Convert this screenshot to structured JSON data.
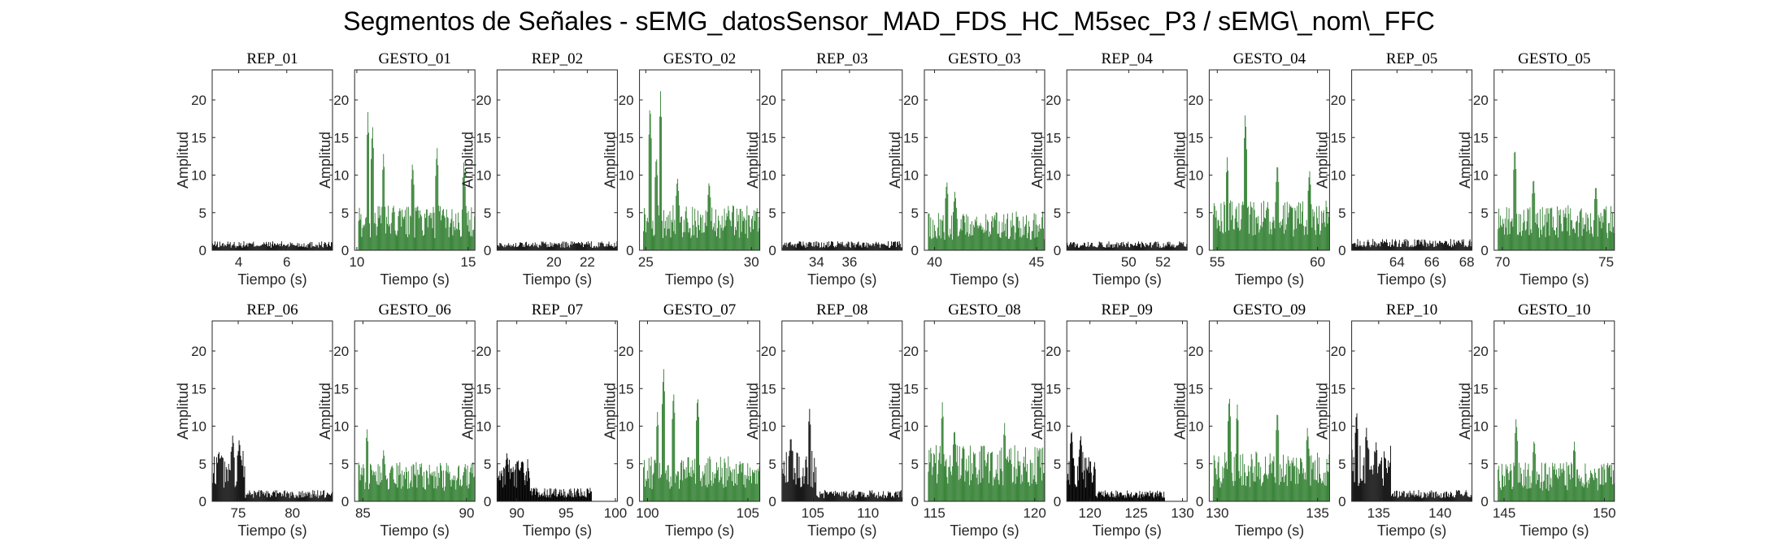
{
  "figure": {
    "title": "Segmentos de Señales - sEMG_datosSensor_MAD_FDS_HC_M5sec_P3 / sEMG\\_nom\\_FFC",
    "colors": {
      "rep": "#000000",
      "gesto": "#2e7d2e",
      "axes": "#262626"
    }
  },
  "chart_data": [
    {
      "type": "bar",
      "title": "REP_01",
      "xlabel": "Tiempo (s)",
      "ylabel": "Amplitud",
      "xlim": [
        2.9,
        7.9
      ],
      "ylim": [
        0,
        24
      ],
      "xticks": [
        4,
        6
      ],
      "yticks": [
        0,
        5,
        10,
        15,
        20
      ],
      "color": "#000000",
      "level": 0.8,
      "peak": 1.5,
      "bursts": []
    },
    {
      "type": "bar",
      "title": "GESTO_01",
      "xlabel": "Tiempo (s)",
      "ylabel": "Amplitud",
      "xlim": [
        9.9,
        15.3
      ],
      "ylim": [
        0,
        24
      ],
      "xticks": [
        10,
        15
      ],
      "yticks": [
        0,
        5,
        10,
        15,
        20
      ],
      "color": "#2e7d2e",
      "level": 4.0,
      "peak": 18.5,
      "bursts": [
        {
          "x": 10.5,
          "h": 18.5
        },
        {
          "x": 10.7,
          "h": 17
        },
        {
          "x": 11.2,
          "h": 13
        },
        {
          "x": 12.5,
          "h": 12
        },
        {
          "x": 13.6,
          "h": 14
        },
        {
          "x": 14.8,
          "h": 12
        }
      ]
    },
    {
      "type": "bar",
      "title": "REP_02",
      "xlabel": "Tiempo (s)",
      "ylabel": "Amplitud",
      "xlim": [
        16.6,
        23.8
      ],
      "ylim": [
        0,
        24
      ],
      "xticks": [
        20,
        22
      ],
      "yticks": [
        0,
        5,
        10,
        15,
        20
      ],
      "color": "#000000",
      "level": 0.8,
      "peak": 1.5,
      "bursts": []
    },
    {
      "type": "bar",
      "title": "GESTO_02",
      "xlabel": "Tiempo (s)",
      "ylabel": "Amplitud",
      "xlim": [
        24.7,
        30.4
      ],
      "ylim": [
        0,
        24
      ],
      "xticks": [
        25,
        30
      ],
      "yticks": [
        0,
        5,
        10,
        15,
        20
      ],
      "color": "#2e7d2e",
      "level": 4.0,
      "peak": 21.2,
      "bursts": [
        {
          "x": 25.2,
          "h": 20
        },
        {
          "x": 25.7,
          "h": 21.2
        },
        {
          "x": 25.5,
          "h": 13
        },
        {
          "x": 26.5,
          "h": 10
        },
        {
          "x": 28,
          "h": 9.5
        }
      ]
    },
    {
      "type": "bar",
      "title": "REP_03",
      "xlabel": "Tiempo (s)",
      "ylabel": "Amplitud",
      "xlim": [
        31.9,
        39.2
      ],
      "ylim": [
        0,
        24
      ],
      "xticks": [
        34,
        36
      ],
      "yticks": [
        0,
        5,
        10,
        15,
        20
      ],
      "color": "#000000",
      "level": 0.8,
      "peak": 1.6,
      "bursts": []
    },
    {
      "type": "bar",
      "title": "GESTO_03",
      "xlabel": "Tiempo (s)",
      "ylabel": "Amplitud",
      "xlim": [
        39.5,
        45.4
      ],
      "ylim": [
        0,
        24
      ],
      "xticks": [
        40,
        45
      ],
      "yticks": [
        0,
        5,
        10,
        15,
        20
      ],
      "color": "#2e7d2e",
      "level": 3.5,
      "peak": 9.5,
      "bursts": [
        {
          "x": 40.6,
          "h": 9.5
        },
        {
          "x": 41,
          "h": 8
        }
      ]
    },
    {
      "type": "bar",
      "title": "REP_04",
      "xlabel": "Tiempo (s)",
      "ylabel": "Amplitud",
      "xlim": [
        46.4,
        53.4
      ],
      "ylim": [
        0,
        24
      ],
      "xticks": [
        50,
        52
      ],
      "yticks": [
        0,
        5,
        10,
        15,
        20
      ],
      "color": "#000000",
      "level": 0.8,
      "peak": 1.6,
      "bursts": []
    },
    {
      "type": "bar",
      "title": "GESTO_04",
      "xlabel": "Tiempo (s)",
      "ylabel": "Amplitud",
      "xlim": [
        54.6,
        60.6
      ],
      "ylim": [
        0,
        24
      ],
      "xticks": [
        55,
        60
      ],
      "yticks": [
        0,
        5,
        10,
        15,
        20
      ],
      "color": "#2e7d2e",
      "level": 4.5,
      "peak": 18.7,
      "bursts": [
        {
          "x": 56.4,
          "h": 18.7
        },
        {
          "x": 55.5,
          "h": 12.5
        },
        {
          "x": 58,
          "h": 12
        },
        {
          "x": 59.6,
          "h": 11
        }
      ]
    },
    {
      "type": "bar",
      "title": "REP_05",
      "xlabel": "Tiempo (s)",
      "ylabel": "Amplitud",
      "xlim": [
        61.4,
        68.3
      ],
      "ylim": [
        0,
        24
      ],
      "xticks": [
        64,
        66,
        68
      ],
      "yticks": [
        0,
        5,
        10,
        15,
        20
      ],
      "color": "#000000",
      "level": 1.0,
      "peak": 2.0,
      "bursts": []
    },
    {
      "type": "bar",
      "title": "GESTO_05",
      "xlabel": "Tiempo (s)",
      "ylabel": "Amplitud",
      "xlim": [
        69.6,
        75.4
      ],
      "ylim": [
        0,
        24
      ],
      "xticks": [
        70,
        75
      ],
      "yticks": [
        0,
        5,
        10,
        15,
        20
      ],
      "color": "#2e7d2e",
      "level": 4.0,
      "peak": 14.2,
      "bursts": [
        {
          "x": 70.6,
          "h": 14.2
        },
        {
          "x": 71.5,
          "h": 10
        },
        {
          "x": 74.5,
          "h": 9
        }
      ]
    },
    {
      "type": "bar",
      "title": "REP_06",
      "xlabel": "Tiempo (s)",
      "ylabel": "Amplitud",
      "xlim": [
        72.6,
        83.7
      ],
      "ylim": [
        0,
        24
      ],
      "xticks": [
        75,
        80
      ],
      "yticks": [
        0,
        5,
        10,
        15,
        20
      ],
      "color": "#000000",
      "level": 1.0,
      "peak": 9.0,
      "bursts": [
        {
          "x": 73.2,
          "h": 7
        },
        {
          "x": 74.5,
          "h": 9
        },
        {
          "x": 75.1,
          "h": 8.5
        }
      ],
      "active": [
        72.6,
        75.6
      ],
      "active_level": 4.5
    },
    {
      "type": "bar",
      "title": "GESTO_06",
      "xlabel": "Tiempo (s)",
      "ylabel": "Amplitud",
      "xlim": [
        84.6,
        90.4
      ],
      "ylim": [
        0,
        24
      ],
      "xticks": [
        85,
        90
      ],
      "yticks": [
        0,
        5,
        10,
        15,
        20
      ],
      "color": "#2e7d2e",
      "level": 3.5,
      "peak": 9.8,
      "bursts": [
        {
          "x": 85.2,
          "h": 9.8
        },
        {
          "x": 86,
          "h": 7
        }
      ]
    },
    {
      "type": "bar",
      "title": "REP_07",
      "xlabel": "Tiempo (s)",
      "ylabel": "Amplitud",
      "xlim": [
        88,
        100.2
      ],
      "ylim": [
        0,
        24
      ],
      "xticks": [
        90,
        95,
        100
      ],
      "yticks": [
        0,
        5,
        10,
        15,
        20
      ],
      "color": "#000000",
      "level": 1.2,
      "peak": 6.5,
      "bursts": [
        {
          "x": 89,
          "h": 6.5
        },
        {
          "x": 90.5,
          "h": 5.6
        }
      ],
      "active": [
        88,
        91.3
      ],
      "active_level": 3.8,
      "end": 97.6
    },
    {
      "type": "bar",
      "title": "GESTO_07",
      "xlabel": "Tiempo (s)",
      "ylabel": "Amplitud",
      "xlim": [
        99.6,
        105.6
      ],
      "ylim": [
        0,
        24
      ],
      "xticks": [
        100,
        105
      ],
      "yticks": [
        0,
        5,
        10,
        15,
        20
      ],
      "color": "#2e7d2e",
      "level": 4.0,
      "peak": 18.2,
      "bursts": [
        {
          "x": 100.8,
          "h": 18.2
        },
        {
          "x": 101.3,
          "h": 15
        },
        {
          "x": 102.5,
          "h": 14.5
        },
        {
          "x": 100.5,
          "h": 12
        }
      ]
    },
    {
      "type": "bar",
      "title": "REP_08",
      "xlabel": "Tiempo (s)",
      "ylabel": "Amplitud",
      "xlim": [
        102.2,
        113.1
      ],
      "ylim": [
        0,
        24
      ],
      "xticks": [
        105,
        110
      ],
      "yticks": [
        0,
        5,
        10,
        15,
        20
      ],
      "color": "#000000",
      "level": 1.0,
      "peak": 12.5,
      "bursts": [
        {
          "x": 103,
          "h": 9
        },
        {
          "x": 104.7,
          "h": 12.5
        }
      ],
      "active": [
        102.2,
        105.3
      ],
      "active_level": 4.5
    },
    {
      "type": "bar",
      "title": "GESTO_08",
      "xlabel": "Tiempo (s)",
      "ylabel": "Amplitud",
      "xlim": [
        114.5,
        120.5
      ],
      "ylim": [
        0,
        24
      ],
      "xticks": [
        115,
        120
      ],
      "yticks": [
        0,
        5,
        10,
        15,
        20
      ],
      "color": "#2e7d2e",
      "level": 5.0,
      "peak": 13.3,
      "bursts": [
        {
          "x": 115.4,
          "h": 13.3
        },
        {
          "x": 116,
          "h": 10
        },
        {
          "x": 118.5,
          "h": 10.5
        }
      ]
    },
    {
      "type": "bar",
      "title": "REP_09",
      "xlabel": "Tiempo (s)",
      "ylabel": "Amplitud",
      "xlim": [
        117.5,
        130.5
      ],
      "ylim": [
        0,
        24
      ],
      "xticks": [
        120,
        125,
        130
      ],
      "yticks": [
        0,
        5,
        10,
        15,
        20
      ],
      "color": "#000000",
      "level": 1.0,
      "peak": 9.8,
      "bursts": [
        {
          "x": 118,
          "h": 9.8
        },
        {
          "x": 119,
          "h": 9
        }
      ],
      "active": [
        117.5,
        120.6
      ],
      "active_level": 4.5,
      "end": 128.1
    },
    {
      "type": "bar",
      "title": "GESTO_09",
      "xlabel": "Tiempo (s)",
      "ylabel": "Amplitud",
      "xlim": [
        129.6,
        135.6
      ],
      "ylim": [
        0,
        24
      ],
      "xticks": [
        130,
        135
      ],
      "yticks": [
        0,
        5,
        10,
        15,
        20
      ],
      "color": "#2e7d2e",
      "level": 4.5,
      "peak": 14.5,
      "bursts": [
        {
          "x": 130.6,
          "h": 14.5
        },
        {
          "x": 131,
          "h": 13
        },
        {
          "x": 133,
          "h": 12.5
        },
        {
          "x": 134.5,
          "h": 10
        }
      ]
    },
    {
      "type": "bar",
      "title": "REP_10",
      "xlabel": "Tiempo (s)",
      "ylabel": "Amplitud",
      "xlim": [
        132.8,
        142.6
      ],
      "ylim": [
        0,
        24
      ],
      "xticks": [
        135,
        140
      ],
      "yticks": [
        0,
        5,
        10,
        15,
        20
      ],
      "color": "#000000",
      "level": 1.0,
      "peak": 12.5,
      "bursts": [
        {
          "x": 133.2,
          "h": 12.5
        },
        {
          "x": 134,
          "h": 10
        },
        {
          "x": 134.8,
          "h": 8
        }
      ],
      "active": [
        132.8,
        136
      ],
      "active_level": 5.0
    },
    {
      "type": "bar",
      "title": "GESTO_10",
      "xlabel": "Tiempo (s)",
      "ylabel": "Amplitud",
      "xlim": [
        144.5,
        150.5
      ],
      "ylim": [
        0,
        24
      ],
      "xticks": [
        145,
        150
      ],
      "yticks": [
        0,
        5,
        10,
        15,
        20
      ],
      "color": "#2e7d2e",
      "level": 3.5,
      "peak": 11.3,
      "bursts": [
        {
          "x": 145.6,
          "h": 11.3
        },
        {
          "x": 146.5,
          "h": 8.5
        },
        {
          "x": 148.5,
          "h": 8
        }
      ]
    }
  ]
}
